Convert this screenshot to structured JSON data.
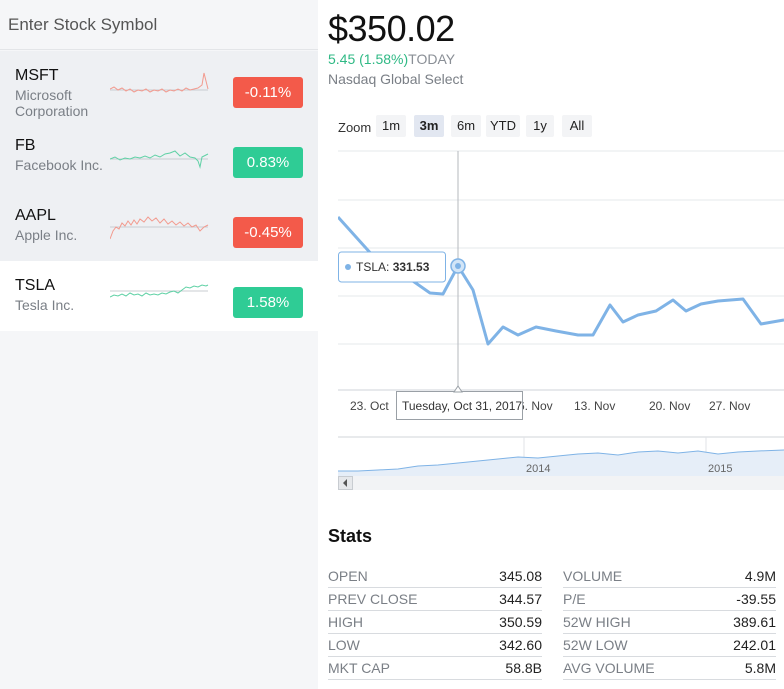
{
  "search": {
    "placeholder": "Enter Stock Symbol"
  },
  "stocks": [
    {
      "symbol": "MSFT",
      "name": "Microsoft Corporation",
      "change": "-0.11%",
      "direction": "down"
    },
    {
      "symbol": "FB",
      "name": "Facebook Inc.",
      "change": "0.83%",
      "direction": "up"
    },
    {
      "symbol": "AAPL",
      "name": "Apple Inc.",
      "change": "-0.45%",
      "direction": "down"
    },
    {
      "symbol": "TSLA",
      "name": "Tesla Inc.",
      "change": "1.58%",
      "direction": "up"
    }
  ],
  "selected_symbol": "TSLA",
  "colors": {
    "up": "#2fcc95",
    "down": "#f35a4a",
    "line": "#7fb3e6"
  },
  "quote": {
    "price": "$350.02",
    "change": "5.45 (1.58%)",
    "change_label": "TODAY",
    "exchange": "Nasdaq Global Select"
  },
  "zoom": {
    "label": "Zoom",
    "options": [
      "1m",
      "3m",
      "6m",
      "YTD",
      "1y",
      "All"
    ],
    "active": "3m"
  },
  "chart_data": {
    "type": "line",
    "x_tick_labels": [
      "23. Oct",
      "6. Nov",
      "13. Nov",
      "20. Nov",
      "27. Nov"
    ],
    "tooltip": {
      "series": "TSLA",
      "value": "331.53",
      "date": "Tuesday, Oct 31, 2017"
    },
    "navigator_labels": [
      "2014",
      "2015"
    ],
    "grid": true
  },
  "stats": {
    "title": "Stats",
    "rows": [
      {
        "label": "OPEN",
        "value": "345.08"
      },
      {
        "label": "VOLUME",
        "value": "4.9M"
      },
      {
        "label": "PREV CLOSE",
        "value": "344.57"
      },
      {
        "label": "P/E",
        "value": "-39.55"
      },
      {
        "label": "HIGH",
        "value": "350.59"
      },
      {
        "label": "52W HIGH",
        "value": "389.61"
      },
      {
        "label": "LOW",
        "value": "342.60"
      },
      {
        "label": "52W LOW",
        "value": "242.01"
      },
      {
        "label": "MKT CAP",
        "value": "58.8B"
      },
      {
        "label": "AVG VOLUME",
        "value": "5.8M"
      }
    ]
  }
}
